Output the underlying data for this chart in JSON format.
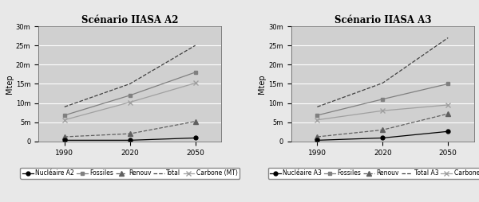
{
  "years": [
    1990,
    2020,
    2050
  ],
  "a2": {
    "title": "Scénario IIASA A2",
    "nucleaire": [
      300,
      300,
      900
    ],
    "fossiles": [
      6800,
      12000,
      18000
    ],
    "renouv": [
      1200,
      2000,
      5200
    ],
    "total": [
      9000,
      15000,
      25000
    ],
    "carbone": [
      5600,
      10200,
      15200
    ]
  },
  "a3": {
    "title": "Scénario IIASA A3",
    "nucleaire": [
      300,
      900,
      2600
    ],
    "fossiles": [
      6800,
      11000,
      15000
    ],
    "renouv": [
      1200,
      3000,
      7200
    ],
    "total": [
      9000,
      15200,
      27000
    ],
    "carbone": [
      5600,
      8000,
      9500
    ]
  },
  "ylim_a2": [
    0,
    30000
  ],
  "ylim_a3": [
    0,
    30000
  ],
  "yticks_a2": [
    0,
    5000,
    10000,
    15000,
    20000,
    25000,
    30000
  ],
  "yticks_a3": [
    0,
    5000,
    10000,
    15000,
    20000,
    25000,
    30000
  ],
  "ytick_labels_a2": [
    "0",
    "5m",
    "10m",
    "15m",
    "20m",
    "25m",
    "30m"
  ],
  "ytick_labels_a3": [
    "0",
    "5m",
    "10m",
    "15m",
    "20m",
    "25m",
    "30m"
  ],
  "ylabel": "Mtep",
  "bg_color": "#d0d0d0",
  "fig_bg_color": "#e8e8e8",
  "line_nucleaire": "#000000",
  "line_fossiles": "#808080",
  "line_renouv": "#606060",
  "line_total": "#404040",
  "line_carbone": "#a0a0a0",
  "legend_a2": [
    "Nucléaire A2",
    "Fossiles",
    "Renouv",
    "Total",
    "Carbone (MT)"
  ],
  "legend_a3": [
    "Nucléaire A3",
    "Fossiles",
    "Renouv",
    "Total A3",
    "Carbone (MT)"
  ]
}
